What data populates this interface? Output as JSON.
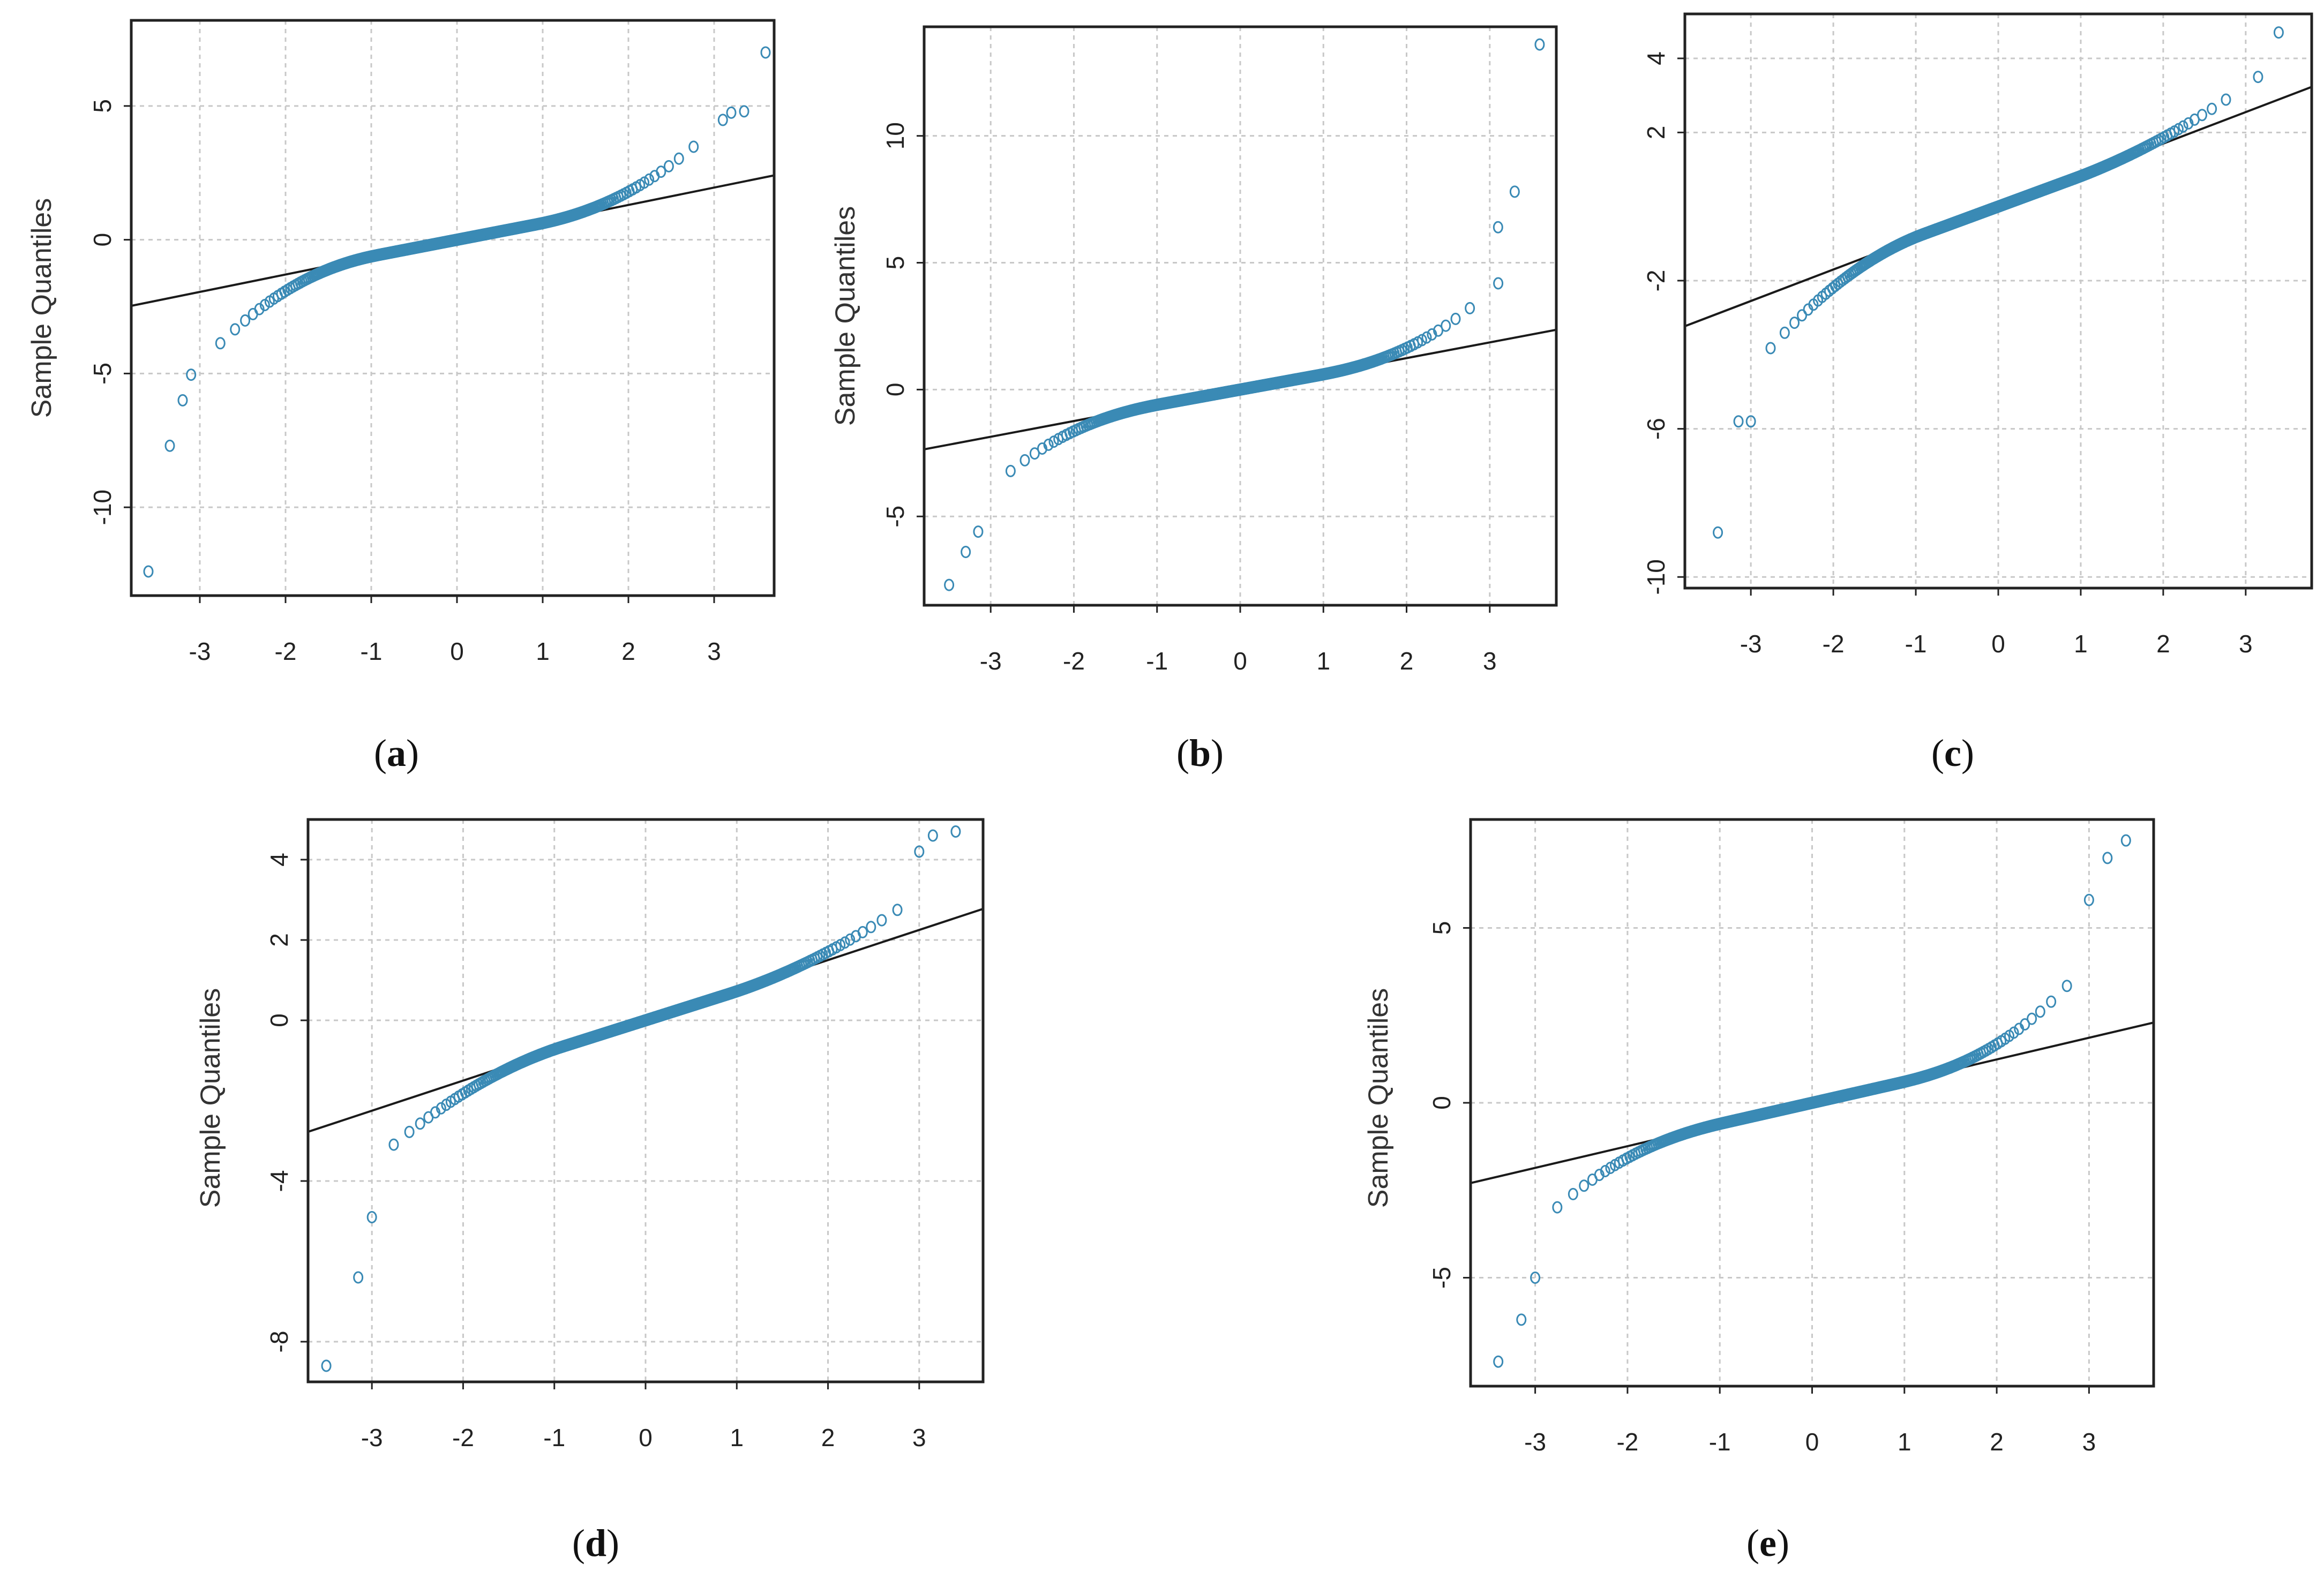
{
  "figure": {
    "point_color": "#3a8ab5",
    "line_color": "#1a1a1a",
    "grid_color": "#c8c8c8"
  },
  "chart_data": [
    {
      "id": "a",
      "type": "scatter",
      "subtype": "normal-qq-plot",
      "panel_label": "a",
      "title": "",
      "xlabel": "",
      "ylabel": "Sample Quantiles",
      "xlim": [
        -3.8,
        3.7
      ],
      "ylim": [
        -13.3,
        8.2
      ],
      "x_ticks": [
        -3,
        -2,
        -1,
        0,
        1,
        2,
        3
      ],
      "x_tick_labels": [
        "-3",
        "-2",
        "-1",
        "0",
        "1",
        "2",
        "3"
      ],
      "y_ticks": [
        5,
        0,
        -5,
        -10
      ],
      "y_tick_labels": [
        "5",
        "0",
        "-5",
        "-10"
      ],
      "grid": true,
      "reference_line": {
        "slope": 0.65,
        "intercept": 0.0
      },
      "points": {
        "theoretical_range": [
          -3.6,
          3.6
        ],
        "tail_exponent": 2.2,
        "center_slope": 0.62,
        "low_scale": 0.55,
        "high_scale": 0.45,
        "extreme_low": [
          [
            -3.6,
            -12.4
          ],
          [
            -3.35,
            -7.7
          ],
          [
            -3.2,
            -6.0
          ]
        ],
        "extreme_high": [
          [
            3.6,
            7.0
          ],
          [
            3.35,
            4.8
          ],
          [
            3.2,
            4.75
          ]
        ]
      }
    },
    {
      "id": "b",
      "type": "scatter",
      "subtype": "normal-qq-plot",
      "panel_label": "b",
      "title": "",
      "xlabel": "",
      "ylabel": "Sample Quantiles",
      "xlim": [
        -3.8,
        3.8
      ],
      "ylim": [
        -8.5,
        14.3
      ],
      "x_ticks": [
        -3,
        -2,
        -1,
        0,
        1,
        2,
        3
      ],
      "x_tick_labels": [
        "-3",
        "-2",
        "-1",
        "0",
        "1",
        "2",
        "3"
      ],
      "y_ticks": [
        10,
        5,
        0,
        -5
      ],
      "y_tick_labels": [
        "10",
        "5",
        "0",
        "-5"
      ],
      "grid": true,
      "reference_line": {
        "slope": 0.62,
        "intercept": 0.0
      },
      "points": {
        "theoretical_range": [
          -3.5,
          3.6
        ],
        "tail_exponent": 2.4,
        "center_slope": 0.6,
        "low_scale": 0.35,
        "high_scale": 0.35,
        "extreme_low": [
          [
            -3.5,
            -7.7
          ],
          [
            -3.3,
            -6.4
          ],
          [
            -3.15,
            -5.6
          ]
        ],
        "extreme_high": [
          [
            3.6,
            13.6
          ],
          [
            3.3,
            7.8
          ],
          [
            3.1,
            6.4
          ]
        ]
      }
    },
    {
      "id": "c",
      "type": "scatter",
      "subtype": "normal-qq-plot",
      "panel_label": "c",
      "title": "",
      "xlabel": "",
      "ylabel": "",
      "xlim": [
        -3.8,
        3.8
      ],
      "ylim": [
        -10.3,
        5.2
      ],
      "x_ticks": [
        -3,
        -2,
        -1,
        0,
        1,
        2,
        3
      ],
      "x_tick_labels": [
        "-3",
        "-2",
        "-1",
        "0",
        "1",
        "2",
        "3"
      ],
      "y_ticks": [
        4,
        2,
        -2,
        -6,
        -10
      ],
      "y_tick_labels": [
        "4",
        "2",
        "-2",
        "-6",
        "-10"
      ],
      "grid": true,
      "reference_line": {
        "slope": 0.85,
        "intercept": 0.0
      },
      "points": {
        "theoretical_range": [
          -3.4,
          3.4
        ],
        "tail_exponent": 2.0,
        "center_slope": 0.82,
        "low_scale": 0.45,
        "high_scale": 0.18,
        "extreme_low": [
          [
            -3.4,
            -8.8
          ],
          [
            -3.15,
            -5.8
          ],
          [
            -3.0,
            -5.8
          ]
        ],
        "extreme_high": [
          [
            3.4,
            4.7
          ],
          [
            3.15,
            3.5
          ]
        ]
      }
    },
    {
      "id": "d",
      "type": "scatter",
      "subtype": "normal-qq-plot",
      "panel_label": "d",
      "title": "",
      "xlabel": "",
      "ylabel": "Sample Quantiles",
      "xlim": [
        -3.7,
        3.7
      ],
      "ylim": [
        -9.0,
        5.0
      ],
      "x_ticks": [
        -3,
        -2,
        -1,
        0,
        1,
        2,
        3
      ],
      "x_tick_labels": [
        "-3",
        "-2",
        "-1",
        "0",
        "1",
        "2",
        "3"
      ],
      "y_ticks": [
        4,
        2,
        0,
        -4,
        -8
      ],
      "y_tick_labels": [
        "4",
        "2",
        "0",
        "-4",
        "-8"
      ],
      "grid": true,
      "reference_line": {
        "slope": 0.75,
        "intercept": 0.0
      },
      "points": {
        "theoretical_range": [
          -3.5,
          3.4
        ],
        "tail_exponent": 2.0,
        "center_slope": 0.72,
        "low_scale": 0.32,
        "high_scale": 0.22,
        "extreme_low": [
          [
            -3.5,
            -8.6
          ],
          [
            -3.15,
            -6.4
          ],
          [
            -3.0,
            -4.9
          ]
        ],
        "extreme_high": [
          [
            3.4,
            4.7
          ],
          [
            3.15,
            4.6
          ],
          [
            3.0,
            4.2
          ]
        ]
      }
    },
    {
      "id": "e",
      "type": "scatter",
      "subtype": "normal-qq-plot",
      "panel_label": "e",
      "title": "",
      "xlabel": "",
      "ylabel": "Sample Quantiles",
      "xlim": [
        -3.7,
        3.7
      ],
      "ylim": [
        -8.1,
        8.1
      ],
      "x_ticks": [
        -3,
        -2,
        -1,
        0,
        1,
        2,
        3
      ],
      "x_tick_labels": [
        "-3",
        "-2",
        "-1",
        "0",
        "1",
        "2",
        "3"
      ],
      "y_ticks": [
        5,
        0,
        -5
      ],
      "y_tick_labels": [
        "5",
        "0",
        "-5"
      ],
      "grid": true,
      "reference_line": {
        "slope": 0.62,
        "intercept": 0.0
      },
      "points": {
        "theoretical_range": [
          -3.4,
          3.4
        ],
        "tail_exponent": 2.4,
        "center_slope": 0.6,
        "low_scale": 0.3,
        "high_scale": 0.38,
        "extreme_low": [
          [
            -3.4,
            -7.4
          ],
          [
            -3.15,
            -6.2
          ],
          [
            -3.0,
            -5.0
          ]
        ],
        "extreme_high": [
          [
            3.4,
            7.5
          ],
          [
            3.2,
            7.0
          ],
          [
            3.0,
            5.8
          ]
        ]
      }
    }
  ]
}
